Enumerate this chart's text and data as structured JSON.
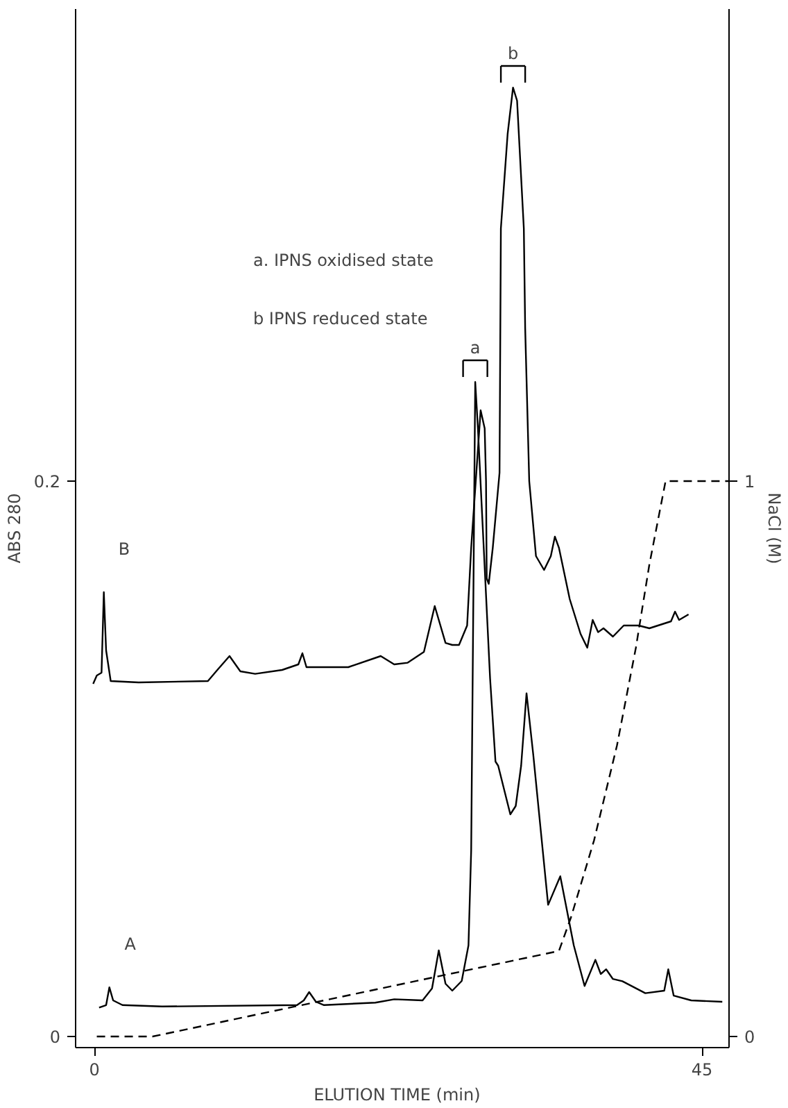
{
  "chart_data": {
    "type": "line",
    "xlabel": "ELUTION  TIME  (min)",
    "ylabel": "ABS 280",
    "y2label": "NaCl (M)",
    "xlim": [
      -1.4,
      47.0
    ],
    "xticks": [
      0,
      45
    ],
    "ylim": [
      -0.004,
      0.37
    ],
    "yticks": [
      0,
      0.2
    ],
    "y2lim": [
      -0.02,
      1.85
    ],
    "y2ticks": [
      0,
      1
    ],
    "grid": false,
    "line_style": "solid",
    "marker": "none",
    "series": [
      {
        "name": "B",
        "color": "#000000",
        "x": [
          -0.1,
          0.17,
          0.52,
          0.69,
          0.86,
          1.2,
          3.27,
          8.4,
          9.1,
          10.0,
          10.8,
          11.9,
          13.9,
          15.1,
          15.4,
          15.7,
          18.8,
          21.2,
          22.2,
          23.2,
          24.4,
          25.2,
          26.0,
          26.5,
          27.0,
          27.6,
          27.9,
          28.6,
          28.9,
          29.0,
          29.05,
          29.2,
          29.5,
          30.0,
          30.1,
          30.6,
          31.0,
          31.3,
          31.8,
          31.9,
          32.2,
          32.7,
          33.3,
          33.8,
          34.1,
          34.4,
          35.2,
          36.0,
          36.5,
          36.9,
          37.3,
          37.7,
          38.4,
          39.2,
          40.3,
          41.1,
          42.7,
          43.0,
          43.3,
          44.0
        ],
        "values": [
          0.127,
          0.13,
          0.131,
          0.16,
          0.139,
          0.128,
          0.1275,
          0.128,
          0.132,
          0.137,
          0.1315,
          0.1306,
          0.132,
          0.134,
          0.138,
          0.133,
          0.133,
          0.137,
          0.134,
          0.1346,
          0.1385,
          0.155,
          0.1417,
          0.141,
          0.141,
          0.148,
          0.176,
          0.2255,
          0.219,
          0.2,
          0.165,
          0.163,
          0.176,
          0.203,
          0.291,
          0.325,
          0.3417,
          0.337,
          0.291,
          0.255,
          0.2,
          0.173,
          0.168,
          0.173,
          0.18,
          0.176,
          0.1575,
          0.145,
          0.14,
          0.15,
          0.1456,
          0.147,
          0.144,
          0.148,
          0.148,
          0.147,
          0.1495,
          0.153,
          0.15,
          0.152
        ]
      },
      {
        "name": "A",
        "color": "#000000",
        "x": [
          0.34,
          0.86,
          1.1,
          1.38,
          2.07,
          5.0,
          15.0,
          15.5,
          15.9,
          16.4,
          17.0,
          20.8,
          22.2,
          24.3,
          25.0,
          25.5,
          26.0,
          26.5,
          27.2,
          27.7,
          27.9,
          28.2,
          28.4,
          29.3,
          29.7,
          29.9,
          30.8,
          31.2,
          31.6,
          32.0,
          32.5,
          33.6,
          34.5,
          35.5,
          36.3,
          37.1,
          37.5,
          37.9,
          38.4,
          39.1,
          40.8,
          42.2,
          42.5,
          42.9,
          44.2,
          46.5
        ],
        "values": [
          0.0104,
          0.0113,
          0.0177,
          0.013,
          0.0113,
          0.0108,
          0.0113,
          0.013,
          0.016,
          0.0125,
          0.0113,
          0.0122,
          0.0134,
          0.013,
          0.0173,
          0.031,
          0.019,
          0.0165,
          0.02,
          0.0328,
          0.067,
          0.2357,
          0.219,
          0.129,
          0.099,
          0.0975,
          0.08,
          0.083,
          0.0975,
          0.1236,
          0.1014,
          0.0474,
          0.0577,
          0.0328,
          0.0182,
          0.0276,
          0.0225,
          0.0242,
          0.0207,
          0.0199,
          0.0156,
          0.0165,
          0.0242,
          0.0147,
          0.013,
          0.0125
        ]
      },
      {
        "type": "line",
        "axis": "y2",
        "line_style": "dashed",
        "color": "#000000",
        "x": [
          0.17,
          4.3,
          34.4,
          35.3,
          37.0,
          38.7,
          40.1,
          41.1,
          42.3,
          47.0
        ],
        "values": [
          0,
          0,
          0.154,
          0.215,
          0.353,
          0.524,
          0.7,
          0.85,
          1.0,
          1.0
        ]
      }
    ],
    "annotations": [
      {
        "text": "a",
        "x": 28.2,
        "y": 0.2357
      },
      {
        "text": "b",
        "x": 31.0,
        "y": 0.3417
      },
      "a. IPNS  oxidised  state",
      "b  IPNS  reduced  state"
    ]
  }
}
